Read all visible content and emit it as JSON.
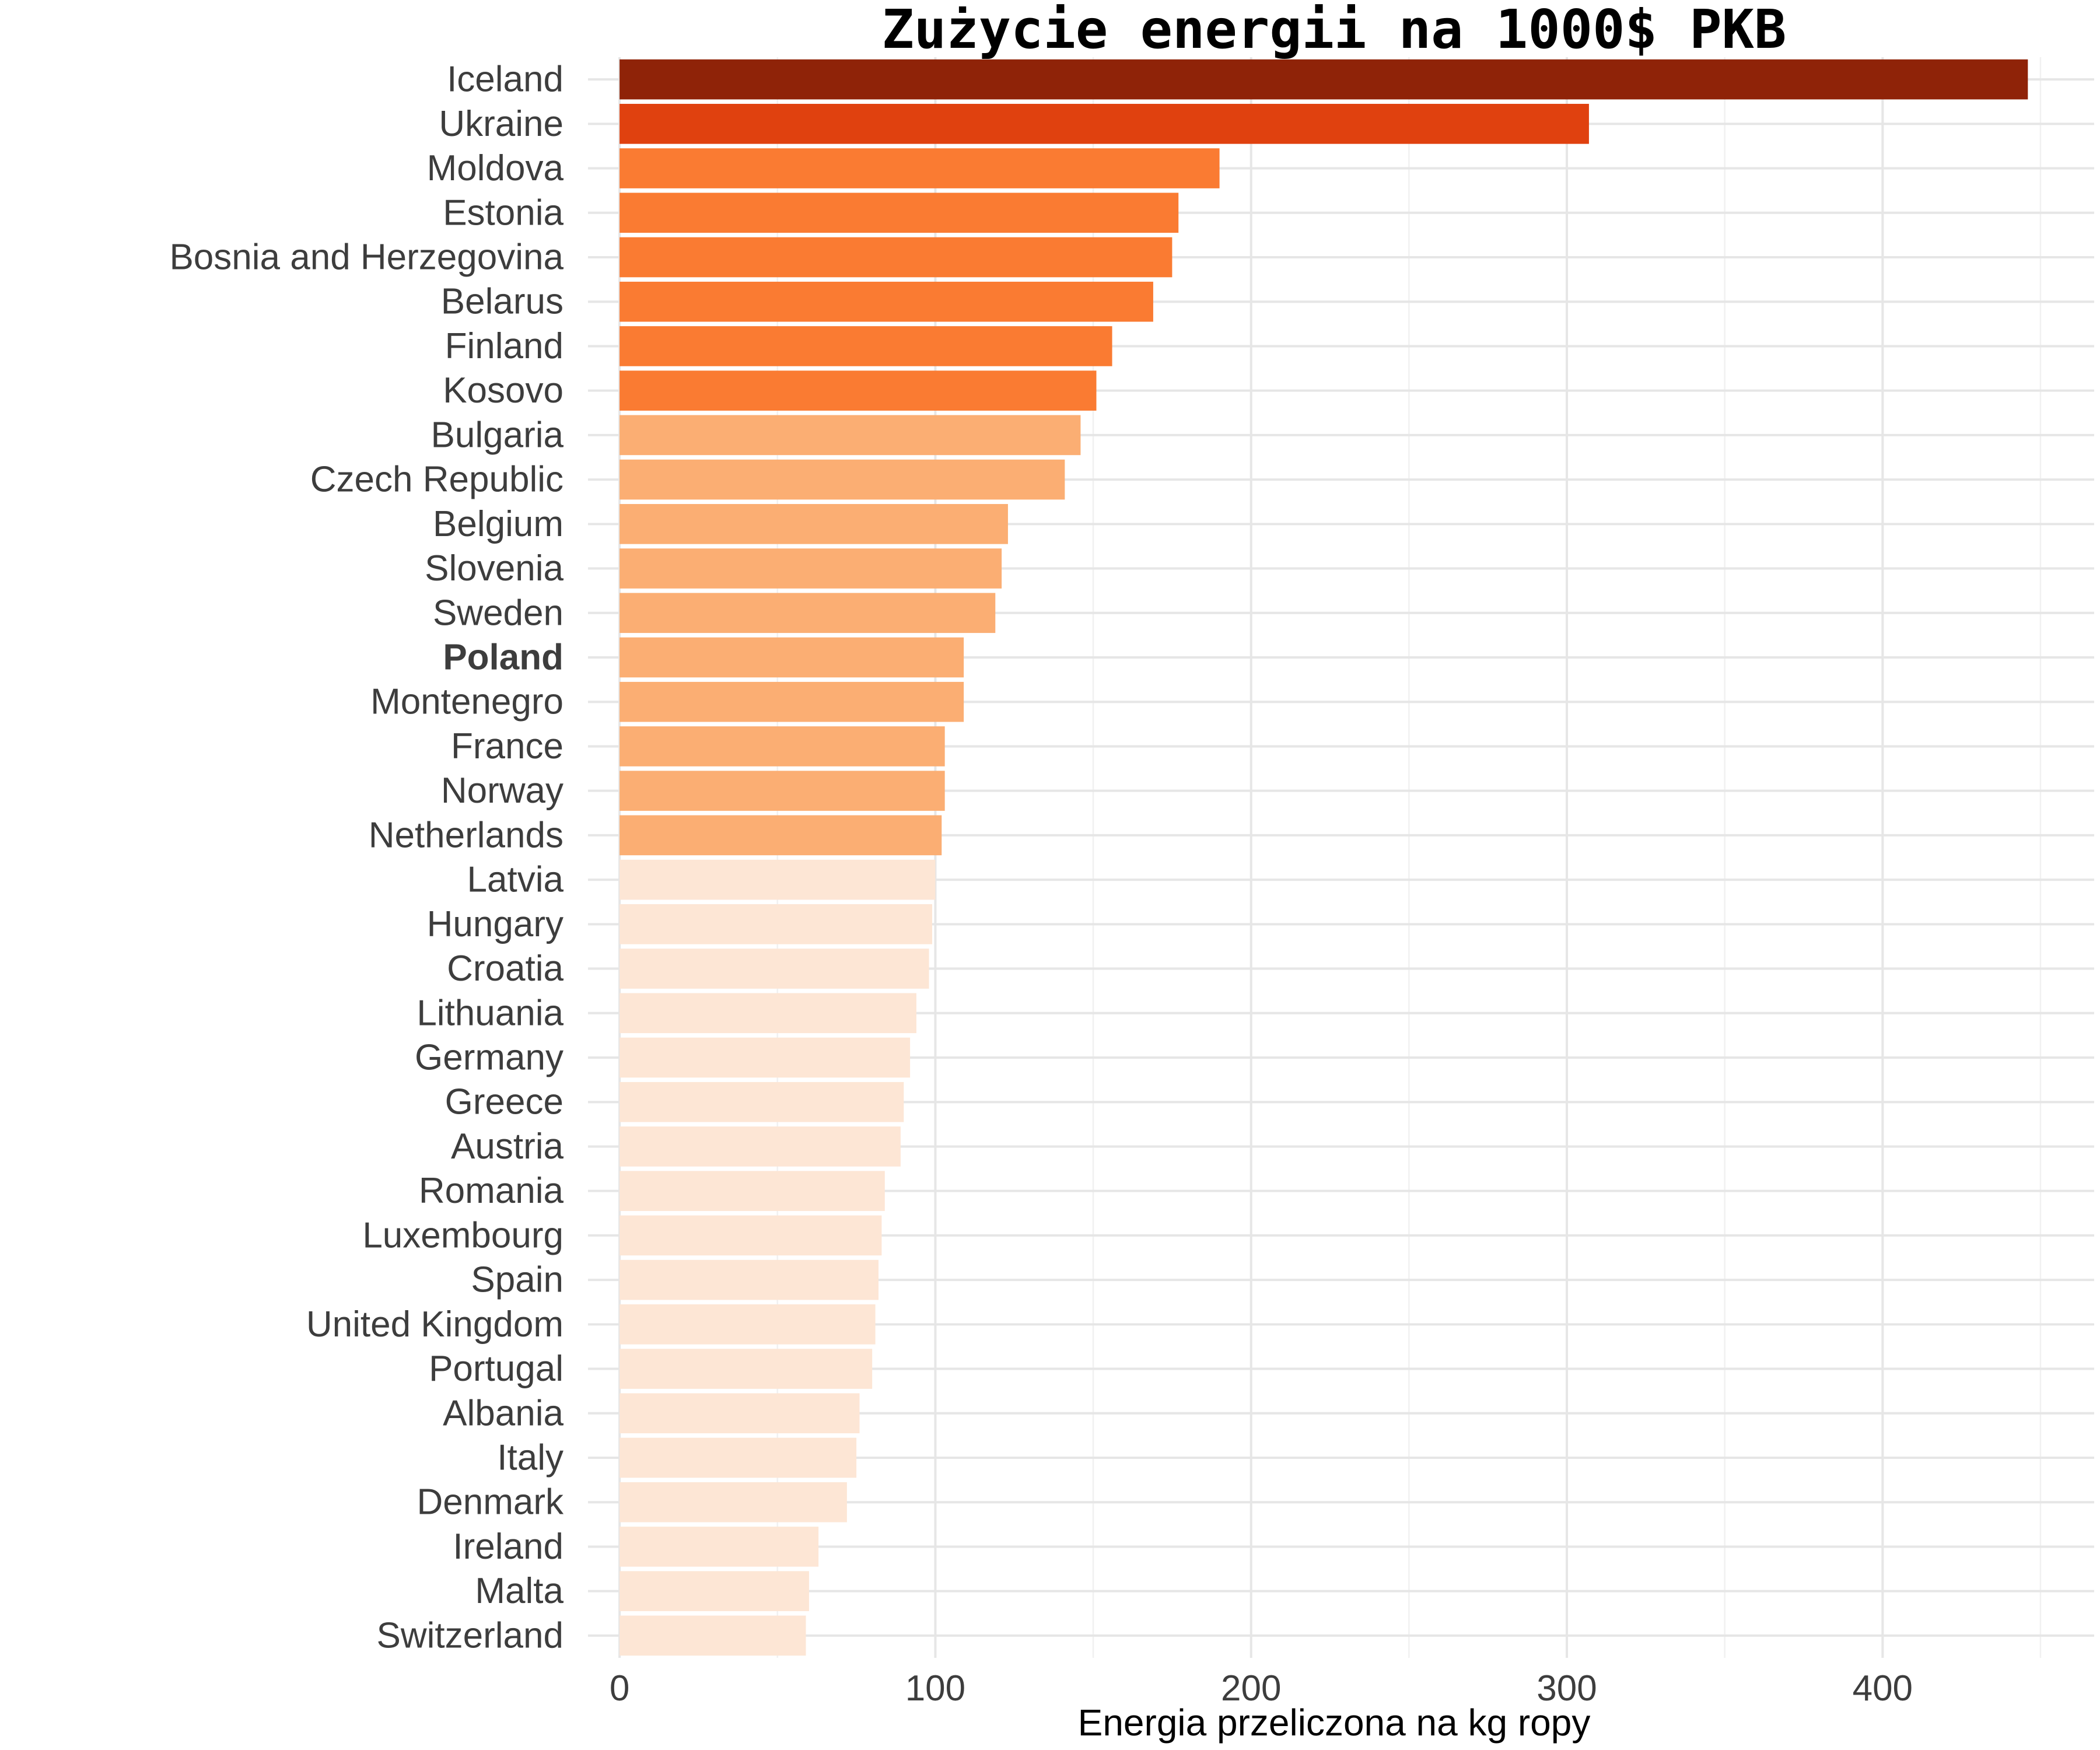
{
  "chart_data": {
    "type": "bar",
    "orientation": "horizontal",
    "title": "Zużycie energii na 1000$ PKB",
    "xlabel": "Energia przeliczona na kg ropy",
    "ylabel": "",
    "xlim": [
      -10,
      467
    ],
    "xticks": [
      0,
      100,
      200,
      300,
      400
    ],
    "grid": true,
    "legend": "none",
    "highlight": "Poland",
    "categories": [
      "Iceland",
      "Ukraine",
      "Moldova",
      "Estonia",
      "Bosnia and Herzegovina",
      "Belarus",
      "Finland",
      "Kosovo",
      "Bulgaria",
      "Czech Republic",
      "Belgium",
      "Slovenia",
      "Sweden",
      "Poland",
      "Montenegro",
      "France",
      "Norway",
      "Netherlands",
      "Latvia",
      "Hungary",
      "Croatia",
      "Lithuania",
      "Germany",
      "Greece",
      "Austria",
      "Romania",
      "Luxembourg",
      "Spain",
      "United Kingdom",
      "Portugal",
      "Albania",
      "Italy",
      "Denmark",
      "Ireland",
      "Malta",
      "Switzerland"
    ],
    "values": [
      446,
      307,
      190,
      177,
      175,
      169,
      156,
      151,
      146,
      141,
      123,
      121,
      119,
      109,
      109,
      103,
      103,
      102,
      100,
      99,
      98,
      94,
      92,
      90,
      89,
      84,
      83,
      82,
      81,
      80,
      76,
      75,
      72,
      63,
      60,
      59
    ],
    "color_tiers": [
      3,
      2,
      1,
      1,
      1,
      1,
      1,
      1,
      0,
      0,
      0,
      0,
      0,
      0,
      0,
      0,
      0,
      0,
      -1,
      -1,
      -1,
      -1,
      -1,
      -1,
      -1,
      -1,
      -1,
      -1,
      -1,
      -1,
      -1,
      -1,
      -1,
      -1,
      -1,
      -1
    ],
    "colors": {
      "tier3": "#8f2308",
      "tier2": "#e0410f",
      "tier1": "#fa7b32",
      "tier0": "#fbae73",
      "tier_low": "#fde6d5"
    }
  }
}
